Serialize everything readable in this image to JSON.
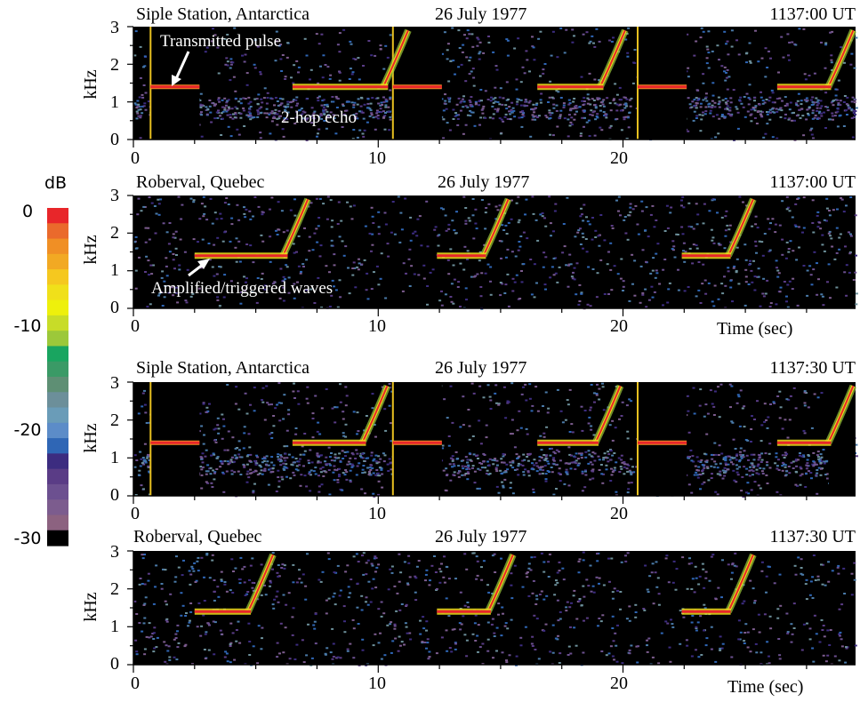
{
  "colorbar": {
    "unit": "dB",
    "tick_labels": [
      "0",
      "-10",
      "-20",
      "-30"
    ],
    "colors": [
      "#e8262a",
      "#ea6a2c",
      "#f08f25",
      "#f2a923",
      "#f5c81f",
      "#f0e01a",
      "#eef00c",
      "#c8dc28",
      "#9cc83a",
      "#19a560",
      "#3a9a66",
      "#5e8f74",
      "#6c8f9a",
      "#6a9cb8",
      "#5c8cc8",
      "#2f66b5",
      "#3c2c80",
      "#5a3c86",
      "#6c5090",
      "#7c5c8e",
      "#8c6280",
      "#000000"
    ]
  },
  "annotations": {
    "transmitted": "Transmitted pulse",
    "echo": "2-hop echo",
    "amplified": "Amplified/triggered waves"
  },
  "chart_data": [
    {
      "type": "heatmap",
      "station": "Siple Station, Antarctica",
      "date": "26 July 1977",
      "time": "1137:00 UT",
      "ylabel": "kHz",
      "xlabel": "",
      "xlim": [
        0,
        29.5
      ],
      "ylim": [
        0,
        3
      ],
      "yticks": [
        "0",
        "1",
        "2",
        "3"
      ],
      "xticks": [
        "0",
        "10",
        "20"
      ],
      "transmitter_pulses": [
        [
          0.7,
          2.7,
          1.4
        ],
        [
          10.6,
          12.6,
          1.4
        ],
        [
          20.6,
          22.6,
          1.4
        ]
      ],
      "received_pulses": [
        [
          6.5,
          10.4,
          1.4
        ],
        [
          16.5,
          19.2,
          1.4
        ],
        [
          26.3,
          28.5,
          1.4
        ]
      ]
    },
    {
      "type": "heatmap",
      "station": "Roberval, Quebec",
      "date": "26 July 1977",
      "time": "1137:00 UT",
      "ylabel": "kHz",
      "xlabel": "Time (sec)",
      "xlim": [
        0,
        29.5
      ],
      "ylim": [
        0,
        3
      ],
      "yticks": [
        "0",
        "1",
        "2",
        "3"
      ],
      "xticks": [
        "0",
        "10",
        "20"
      ],
      "received_pulses": [
        [
          2.5,
          6.3,
          1.4
        ],
        [
          12.4,
          14.4,
          1.4
        ],
        [
          22.4,
          24.4,
          1.4
        ]
      ]
    },
    {
      "type": "heatmap",
      "station": "Siple Station, Antarctica",
      "date": "26 July 1977",
      "time": "1137:30 UT",
      "ylabel": "kHz",
      "xlabel": "",
      "xlim": [
        0,
        29.5
      ],
      "ylim": [
        0,
        3
      ],
      "yticks": [
        "0",
        "1",
        "2",
        "3"
      ],
      "xticks": [
        "0",
        "10",
        "20"
      ],
      "transmitter_pulses": [
        [
          0.7,
          2.7,
          1.4
        ],
        [
          10.6,
          12.6,
          1.4
        ],
        [
          20.6,
          22.6,
          1.4
        ]
      ],
      "received_pulses": [
        [
          6.5,
          9.5,
          1.4
        ],
        [
          16.5,
          19.0,
          1.4
        ],
        [
          26.3,
          28.5,
          1.4
        ]
      ]
    },
    {
      "type": "heatmap",
      "station": "Roberval, Quebec",
      "date": "26 July 1977",
      "time": "1137:30 UT",
      "ylabel": "kHz",
      "xlabel": "Time (sec)",
      "xlim": [
        0,
        29.5
      ],
      "ylim": [
        0,
        3
      ],
      "yticks": [
        "0",
        "1",
        "2",
        "3"
      ],
      "xticks": [
        "0",
        "10",
        "20"
      ],
      "received_pulses": [
        [
          2.5,
          4.8,
          1.4
        ],
        [
          12.4,
          14.6,
          1.4
        ],
        [
          22.4,
          24.4,
          1.4
        ]
      ]
    }
  ]
}
